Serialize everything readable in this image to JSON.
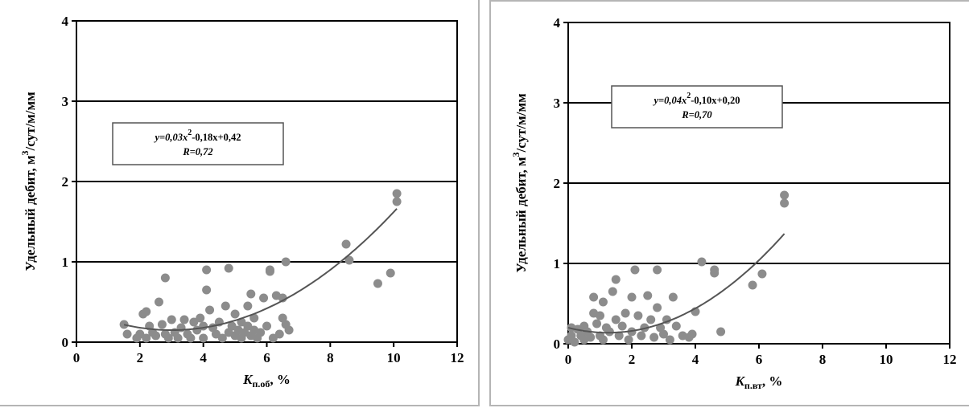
{
  "chart_data": [
    {
      "type": "scatter",
      "ylabel": "Удельный дебит, м³/сут/м/мм",
      "ylabel_base": "Удельный дебит, м",
      "ylabel_sup": "3",
      "ylabel_rest": "/сут/м/мм",
      "xlabel_main": "K",
      "xlabel_sub": "п.об",
      "xlabel_tail": ", %",
      "xlim": [
        0,
        12
      ],
      "ylim": [
        0,
        4
      ],
      "xticks": [
        0,
        2,
        4,
        6,
        8,
        10,
        12
      ],
      "yticks": [
        0,
        1,
        2,
        3,
        4
      ],
      "grid": "horizontal",
      "equation_line1_pre": "y=0,03x",
      "equation_line1_sup": "2",
      "equation_line1_post": "-0,18x+0,42",
      "equation_line2": "R=0,72",
      "trendline": {
        "a": 0.03,
        "b": -0.18,
        "c": 0.42,
        "x_range": [
          1.5,
          10.1
        ]
      },
      "marker_color": "#8c8c8c",
      "line_color": "#555555",
      "points": [
        [
          1.5,
          0.22
        ],
        [
          1.6,
          0.1
        ],
        [
          1.9,
          0.05
        ],
        [
          2.0,
          0.1
        ],
        [
          2.1,
          0.35
        ],
        [
          2.2,
          0.38
        ],
        [
          2.2,
          0.05
        ],
        [
          2.3,
          0.2
        ],
        [
          2.4,
          0.12
        ],
        [
          2.5,
          0.08
        ],
        [
          2.6,
          0.5
        ],
        [
          2.7,
          0.22
        ],
        [
          2.8,
          0.8
        ],
        [
          2.8,
          0.1
        ],
        [
          2.9,
          0.05
        ],
        [
          3.0,
          0.28
        ],
        [
          3.1,
          0.12
        ],
        [
          3.2,
          0.05
        ],
        [
          3.3,
          0.18
        ],
        [
          3.4,
          0.28
        ],
        [
          3.5,
          0.1
        ],
        [
          3.6,
          0.05
        ],
        [
          3.7,
          0.25
        ],
        [
          3.8,
          0.15
        ],
        [
          3.9,
          0.3
        ],
        [
          4.0,
          0.05
        ],
        [
          4.0,
          0.2
        ],
        [
          4.1,
          0.9
        ],
        [
          4.1,
          0.65
        ],
        [
          4.2,
          0.4
        ],
        [
          4.3,
          0.18
        ],
        [
          4.4,
          0.1
        ],
        [
          4.5,
          0.25
        ],
        [
          4.6,
          0.05
        ],
        [
          4.7,
          0.45
        ],
        [
          4.8,
          0.12
        ],
        [
          4.8,
          0.92
        ],
        [
          4.9,
          0.2
        ],
        [
          5.0,
          0.35
        ],
        [
          5.0,
          0.08
        ],
        [
          5.1,
          0.15
        ],
        [
          5.2,
          0.25
        ],
        [
          5.2,
          0.05
        ],
        [
          5.3,
          0.12
        ],
        [
          5.4,
          0.2
        ],
        [
          5.4,
          0.45
        ],
        [
          5.5,
          0.6
        ],
        [
          5.5,
          0.08
        ],
        [
          5.6,
          0.3
        ],
        [
          5.6,
          0.15
        ],
        [
          5.7,
          0.05
        ],
        [
          5.8,
          0.12
        ],
        [
          5.9,
          0.55
        ],
        [
          6.0,
          0.2
        ],
        [
          6.1,
          0.88
        ],
        [
          6.1,
          0.9
        ],
        [
          6.2,
          0.05
        ],
        [
          6.3,
          0.58
        ],
        [
          6.4,
          0.1
        ],
        [
          6.5,
          0.55
        ],
        [
          6.5,
          0.3
        ],
        [
          6.6,
          0.22
        ],
        [
          6.6,
          1.0
        ],
        [
          6.7,
          0.15
        ],
        [
          8.5,
          1.22
        ],
        [
          8.6,
          1.02
        ],
        [
          9.5,
          0.73
        ],
        [
          9.9,
          0.86
        ],
        [
          10.1,
          1.85
        ],
        [
          10.1,
          1.75
        ]
      ]
    },
    {
      "type": "scatter",
      "ylabel": "Удельный дебит, м³/сут/м/мм",
      "ylabel_base": "Удельный дебит, м",
      "ylabel_sup": "3",
      "ylabel_rest": "/сут/м/мм",
      "xlabel_main": "K",
      "xlabel_sub": "п.вт",
      "xlabel_tail": ", %",
      "xlim": [
        0,
        12
      ],
      "ylim": [
        0,
        4
      ],
      "xticks": [
        0,
        2,
        4,
        6,
        8,
        10,
        12
      ],
      "yticks": [
        0,
        1,
        2,
        3,
        4
      ],
      "grid": "horizontal",
      "equation_line1_pre": "y=0,04x",
      "equation_line1_sup": "2",
      "equation_line1_post": "-0,10x+0,20",
      "equation_line2": "R=0,70",
      "trendline": {
        "a": 0.04,
        "b": -0.1,
        "c": 0.2,
        "x_range": [
          0.0,
          6.8
        ]
      },
      "marker_color": "#8c8c8c",
      "line_color": "#555555",
      "points": [
        [
          0.0,
          0.05
        ],
        [
          0.1,
          0.2
        ],
        [
          0.1,
          0.1
        ],
        [
          0.2,
          0.02
        ],
        [
          0.3,
          0.18
        ],
        [
          0.4,
          0.1
        ],
        [
          0.5,
          0.22
        ],
        [
          0.5,
          0.05
        ],
        [
          0.6,
          0.15
        ],
        [
          0.7,
          0.08
        ],
        [
          0.8,
          0.38
        ],
        [
          0.8,
          0.58
        ],
        [
          0.9,
          0.25
        ],
        [
          1.0,
          0.1
        ],
        [
          1.0,
          0.35
        ],
        [
          1.1,
          0.52
        ],
        [
          1.1,
          0.05
        ],
        [
          1.2,
          0.2
        ],
        [
          1.3,
          0.15
        ],
        [
          1.4,
          0.65
        ],
        [
          1.5,
          0.8
        ],
        [
          1.5,
          0.3
        ],
        [
          1.6,
          0.1
        ],
        [
          1.7,
          0.22
        ],
        [
          1.8,
          0.38
        ],
        [
          1.9,
          0.05
        ],
        [
          2.0,
          0.15
        ],
        [
          2.0,
          0.58
        ],
        [
          2.1,
          0.92
        ],
        [
          2.2,
          0.35
        ],
        [
          2.3,
          0.1
        ],
        [
          2.4,
          0.2
        ],
        [
          2.5,
          0.6
        ],
        [
          2.6,
          0.3
        ],
        [
          2.7,
          0.08
        ],
        [
          2.8,
          0.92
        ],
        [
          2.8,
          0.45
        ],
        [
          2.9,
          0.2
        ],
        [
          3.0,
          0.12
        ],
        [
          3.1,
          0.3
        ],
        [
          3.2,
          0.05
        ],
        [
          3.3,
          0.58
        ],
        [
          3.4,
          0.22
        ],
        [
          3.6,
          0.1
        ],
        [
          3.8,
          0.08
        ],
        [
          3.9,
          0.12
        ],
        [
          4.0,
          0.4
        ],
        [
          4.2,
          1.02
        ],
        [
          4.6,
          0.88
        ],
        [
          4.6,
          0.92
        ],
        [
          4.8,
          0.15
        ],
        [
          5.8,
          0.73
        ],
        [
          6.1,
          0.87
        ],
        [
          6.8,
          1.85
        ],
        [
          6.8,
          1.75
        ]
      ]
    }
  ]
}
